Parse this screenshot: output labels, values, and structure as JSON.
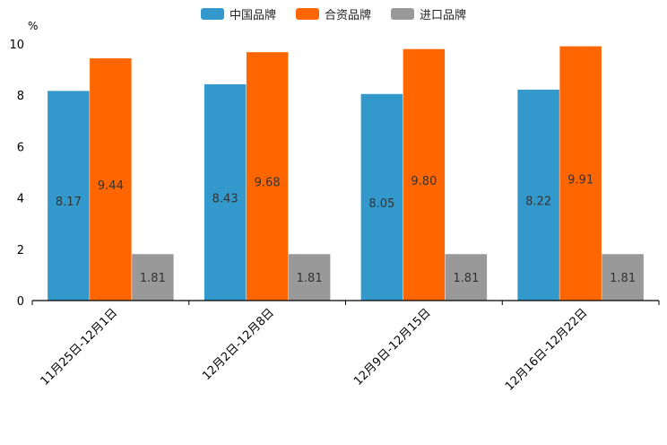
{
  "chart_data": {
    "type": "bar",
    "title": "",
    "ylabel": "%",
    "xlabel": "",
    "ylim": [
      0,
      10
    ],
    "yticks": [
      0,
      2,
      4,
      6,
      8,
      10
    ],
    "categories": [
      "11月25日-12月1日",
      "12月2日-12月8日",
      "12月9日-12月15日",
      "12月16日-12月22日"
    ],
    "series": [
      {
        "name": "中国品牌",
        "color": "#3399cc",
        "values": [
          8.17,
          8.43,
          8.05,
          8.22
        ],
        "labels": [
          "8.17",
          "8.43",
          "8.05",
          "8.22"
        ]
      },
      {
        "name": "合资品牌",
        "color": "#ff6600",
        "values": [
          9.44,
          9.68,
          9.8,
          9.91
        ],
        "labels": [
          "9.44",
          "9.68",
          "9.80",
          "9.91"
        ]
      },
      {
        "name": "进口品牌",
        "color": "#999999",
        "values": [
          1.81,
          1.81,
          1.81,
          1.81
        ],
        "labels": [
          "1.81",
          "1.81",
          "1.81",
          "1.81"
        ]
      }
    ],
    "legend_position": "top-center"
  }
}
